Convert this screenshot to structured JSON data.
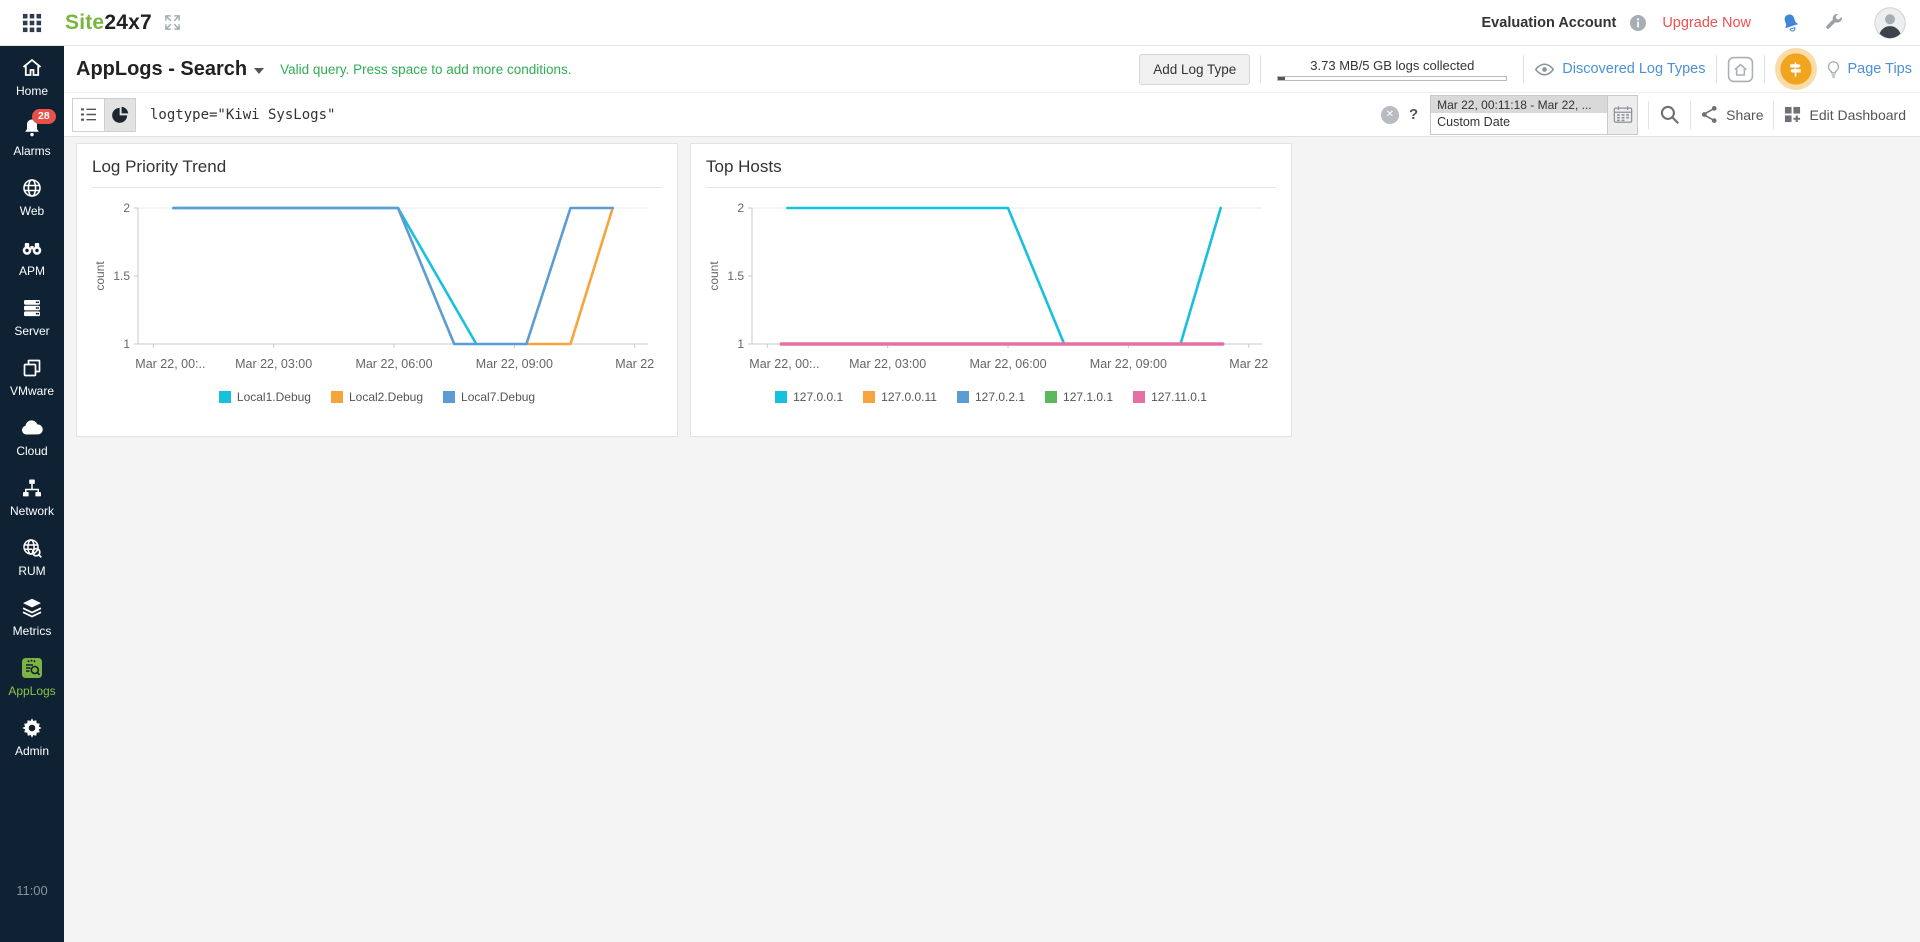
{
  "topbar": {
    "logo_site": "Site",
    "logo_rest": "24x7",
    "account_label": "Evaluation Account",
    "upgrade_label": "Upgrade Now"
  },
  "sidebar": {
    "items": [
      {
        "label": "Home",
        "icon": "home-icon"
      },
      {
        "label": "Alarms",
        "icon": "bell-icon",
        "badge": "28"
      },
      {
        "label": "Web",
        "icon": "globe-icon"
      },
      {
        "label": "APM",
        "icon": "binoculars-icon"
      },
      {
        "label": "Server",
        "icon": "server-icon"
      },
      {
        "label": "VMware",
        "icon": "vmware-icon"
      },
      {
        "label": "Cloud",
        "icon": "cloud-icon"
      },
      {
        "label": "Network",
        "icon": "network-icon"
      },
      {
        "label": "RUM",
        "icon": "rum-globe-icon"
      },
      {
        "label": "Metrics",
        "icon": "metrics-layers-icon"
      },
      {
        "label": "AppLogs",
        "icon": "applogs-icon",
        "active": true
      },
      {
        "label": "Admin",
        "icon": "gear-icon"
      }
    ],
    "footer_time": "11:00"
  },
  "header": {
    "title": "AppLogs - Search",
    "status_message": "Valid query. Press space to add more conditions.",
    "add_log_type_label": "Add Log Type",
    "usage_text": "3.73 MB/5 GB logs collected",
    "usage_percent": 0.073,
    "discovered_label": "Discovered Log Types",
    "page_tips_label": "Page Tips"
  },
  "search_bar": {
    "query": "logtype=\"Kiwi SysLogs\"",
    "help_label": "?",
    "date_range": "Mar 22, 00:11:18 - Mar 22, ...",
    "date_mode": "Custom Date",
    "share_label": "Share",
    "edit_dashboard_label": "Edit Dashboard"
  },
  "chart_data": [
    {
      "type": "line",
      "title": "Log Priority Trend",
      "ylabel": "count",
      "ylim": [
        1,
        2
      ],
      "ytick_values": [
        2,
        1.5,
        1
      ],
      "ytick_labels": [
        "2",
        "1.5",
        "1"
      ],
      "x_range_hours": [
        0,
        12
      ],
      "x_tick_hours": [
        0,
        3,
        6,
        9,
        12
      ],
      "x_tick_labels": [
        "Mar 22, 00:..",
        "Mar 22, 03:00",
        "Mar 22, 06:00",
        "Mar 22, 09:00",
        "Mar 22"
      ],
      "grid": "top-line-only",
      "legend_position": "bottom",
      "series": [
        {
          "name": "Local1.Debug",
          "color": "#17c0dd",
          "x_hours": [
            0.5,
            6.1,
            8.05
          ],
          "values": [
            2,
            2,
            1
          ]
        },
        {
          "name": "Local2.Debug",
          "color": "#f6a43c",
          "x_hours": [
            9.3,
            10.4,
            11.45
          ],
          "values": [
            1,
            1,
            2
          ]
        },
        {
          "name": "Local7.Debug",
          "color": "#5d9bd3",
          "x_hours": [
            0.5,
            6.1,
            7.5,
            9.3,
            10.4,
            11.45
          ],
          "values": [
            2,
            2,
            1,
            1,
            2,
            2
          ]
        }
      ]
    },
    {
      "type": "line",
      "title": "Top Hosts",
      "ylabel": "count",
      "ylim": [
        1,
        2
      ],
      "ytick_values": [
        2,
        1.5,
        1
      ],
      "ytick_labels": [
        "2",
        "1.5",
        "1"
      ],
      "x_range_hours": [
        0,
        12
      ],
      "x_tick_hours": [
        0,
        3,
        6,
        9,
        12
      ],
      "x_tick_labels": [
        "Mar 22, 00:..",
        "Mar 22, 03:00",
        "Mar 22, 06:00",
        "Mar 22, 09:00",
        "Mar 22"
      ],
      "grid": "top-line-only",
      "legend_position": "bottom",
      "series": [
        {
          "name": "127.0.0.1",
          "color": "#17c0dd",
          "x_hours": [
            0.5,
            6.0,
            7.4,
            10.3,
            11.3
          ],
          "values": [
            2,
            2,
            1,
            1,
            2
          ]
        },
        {
          "name": "127.0.0.11",
          "color": "#f6a43c",
          "x_hours": [
            0.35,
            11.35
          ],
          "values": [
            1,
            1
          ]
        },
        {
          "name": "127.0.2.1",
          "color": "#5d9bd3",
          "x_hours": [
            0.35,
            11.35
          ],
          "values": [
            1,
            1
          ]
        },
        {
          "name": "127.1.0.1",
          "color": "#5cb85c",
          "x_hours": [
            0.35,
            11.35
          ],
          "values": [
            1,
            1
          ]
        },
        {
          "name": "127.11.0.1",
          "color": "#e570a4",
          "x_hours": [
            0.35,
            11.35
          ],
          "values": [
            1,
            1
          ],
          "line_width": 3.5
        }
      ]
    }
  ],
  "colors": {
    "accent_green": "#7cb342",
    "link_blue": "#4a90d9",
    "alert_red": "#f05050",
    "badge_red": "#e8504a",
    "sidebar_bg": "#0f2233",
    "tour_orange": "#f2a41e"
  }
}
